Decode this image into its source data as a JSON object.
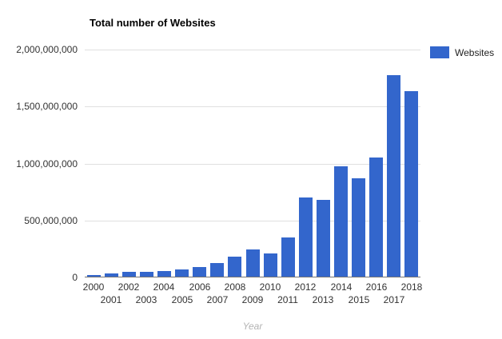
{
  "chart_data": {
    "type": "bar",
    "title": "Total number of Websites",
    "xlabel": "Year",
    "ylabel": "",
    "categories": [
      "2000",
      "2001",
      "2002",
      "2003",
      "2004",
      "2005",
      "2006",
      "2007",
      "2008",
      "2009",
      "2010",
      "2011",
      "2012",
      "2013",
      "2014",
      "2015",
      "2016",
      "2017",
      "2018"
    ],
    "series": [
      {
        "name": "Websites",
        "values": [
          17087182,
          29254370,
          38760373,
          40912332,
          51611646,
          64780617,
          85507314,
          121892559,
          172338726,
          238027855,
          206956723,
          346004403,
          697089489,
          672985183,
          968882453,
          863105652,
          1045534808,
          1766926408,
          1630322579
        ]
      }
    ],
    "ylim": [
      0,
      2000000000
    ],
    "y_ticks": [
      "0",
      "500,000,000",
      "1,000,000,000",
      "1,500,000,000",
      "2,000,000,000"
    ],
    "grid": true,
    "legend_position": "right",
    "x_labels_staggered": true,
    "colors": {
      "bar": "#3366cc",
      "gridline": "#e0e0e0",
      "axis_line": "#757575",
      "tick_label": "#333333",
      "axis_title": "#b3b3b3"
    }
  }
}
